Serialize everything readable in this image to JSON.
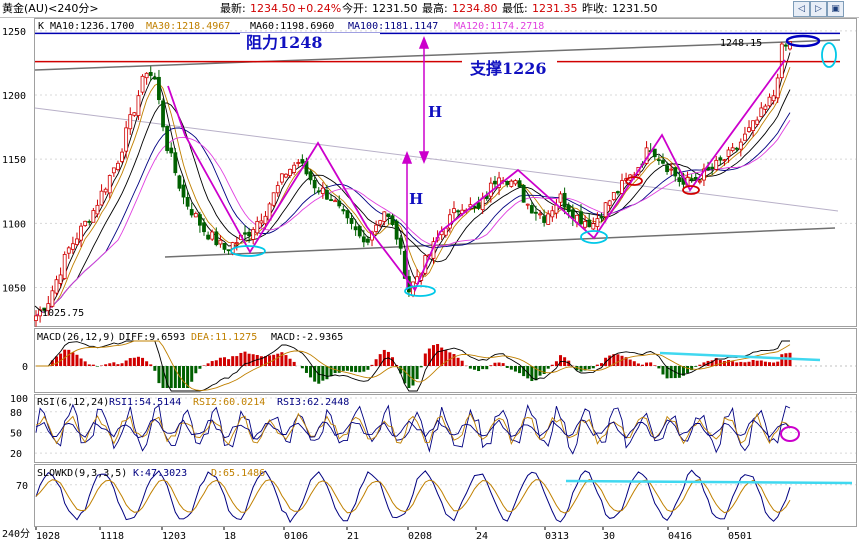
{
  "header": {
    "symbol": "黄金(AU)<240分>",
    "latest_label": "最新:",
    "latest": "1234.50",
    "change": "+0.24%",
    "open_label": "今开:",
    "open": "1231.50",
    "high_label": "最高:",
    "high": "1234.80",
    "low_label": "最低:",
    "low": "1231.35",
    "prev_label": "昨收:",
    "prev": "1231.50",
    "btn_prev": "◁",
    "btn_next": "▷",
    "btn_zoom": "▣"
  },
  "ma_legend": [
    {
      "text": "K",
      "color": "#000000"
    },
    {
      "text": "MA10:1236.1700",
      "color": "#000000"
    },
    {
      "text": "MA30:1218.4967",
      "color": "#c08000"
    },
    {
      "text": "MA60:1198.6960",
      "color": "#000000"
    },
    {
      "text": "MA100:1181.1147",
      "color": "#000080"
    },
    {
      "text": "MA120:1174.2718",
      "color": "#e040e0"
    }
  ],
  "annotations": {
    "resistance": "阻力1248",
    "support": "支撑1226",
    "h_label": "H",
    "low_price": "1025.75",
    "high_price": "1248.15"
  },
  "macd_legend": [
    {
      "text": "MACD(26,12,9)",
      "color": "#000000"
    },
    {
      "text": "DIFF:9.6593",
      "color": "#000000"
    },
    {
      "text": "DEA:11.1275",
      "color": "#c08000"
    },
    {
      "text": "MACD:-2.9365",
      "color": "#000000"
    }
  ],
  "rsi_legend": [
    {
      "text": "RSI(6,12,24)",
      "color": "#000000"
    },
    {
      "text": "RSI1:54.5144",
      "color": "#000080"
    },
    {
      "text": "RSI2:60.0214",
      "color": "#c08000"
    },
    {
      "text": "RSI3:62.2448",
      "color": "#000080"
    }
  ],
  "kd_legend": [
    {
      "text": "SLOWKD(9,3,3,5)",
      "color": "#000000"
    },
    {
      "text": "K:47.3023",
      "color": "#000080"
    },
    {
      "text": "D:65.1486",
      "color": "#c08000"
    }
  ],
  "colors": {
    "up": "#d00000",
    "down": "#006000",
    "ma10": "#000000",
    "ma30": "#c08000",
    "ma60": "#000000",
    "ma100": "#000080",
    "ma120": "#e040e0",
    "resistance": "#0000b0",
    "support": "#d00000",
    "pattern": "#cc00cc",
    "highlight": "#00c8e8"
  },
  "chart_data": [
    {
      "type": "candlestick",
      "name": "黄金(AU) 240分 K线",
      "ylim": [
        1020,
        1260
      ],
      "y_ticks": [
        1050,
        1100,
        1150,
        1200,
        1250
      ],
      "x_ticks": [
        "1028",
        "1118",
        "1203",
        "18",
        "0106",
        "21",
        "0208",
        "24",
        "0313",
        "30",
        "0416",
        "0501"
      ],
      "x_tick_label_corner": "240分",
      "close_path": [
        [
          0,
          1028
        ],
        [
          3,
          1040
        ],
        [
          8,
          1080
        ],
        [
          14,
          1110
        ],
        [
          20,
          1150
        ],
        [
          24,
          1190
        ],
        [
          27,
          1220
        ],
        [
          29,
          1212
        ],
        [
          32,
          1160
        ],
        [
          36,
          1120
        ],
        [
          41,
          1095
        ],
        [
          46,
          1080
        ],
        [
          51,
          1090
        ],
        [
          56,
          1110
        ],
        [
          61,
          1140
        ],
        [
          64,
          1148
        ],
        [
          68,
          1130
        ],
        [
          72,
          1120
        ],
        [
          76,
          1100
        ],
        [
          80,
          1085
        ],
        [
          85,
          1110
        ],
        [
          88,
          1090
        ],
        [
          91,
          1048
        ],
        [
          95,
          1070
        ],
        [
          100,
          1100
        ],
        [
          104,
          1115
        ],
        [
          108,
          1110
        ],
        [
          113,
          1140
        ],
        [
          117,
          1130
        ],
        [
          120,
          1115
        ],
        [
          124,
          1105
        ],
        [
          128,
          1120
        ],
        [
          132,
          1105
        ],
        [
          136,
          1100
        ],
        [
          140,
          1118
        ],
        [
          146,
          1140
        ],
        [
          150,
          1160
        ],
        [
          154,
          1145
        ],
        [
          158,
          1130
        ],
        [
          164,
          1140
        ],
        [
          170,
          1155
        ],
        [
          176,
          1180
        ],
        [
          180,
          1200
        ],
        [
          182,
          1235
        ],
        [
          184,
          1240
        ]
      ],
      "lines": [
        {
          "name": "阻力1248",
          "y": 1248
        },
        {
          "name": "支撑1226",
          "y": 1226
        }
      ]
    },
    {
      "type": "line",
      "name": "MACD(26,12,9)",
      "y_ticks": [
        0
      ],
      "series": [
        {
          "name": "DIFF",
          "last": 9.6593
        },
        {
          "name": "DEA",
          "last": 11.1275
        },
        {
          "name": "MACD",
          "last": -2.9365
        }
      ]
    },
    {
      "type": "line",
      "name": "RSI(6,12,24)",
      "ylim": [
        10,
        100
      ],
      "y_ticks": [
        20,
        50,
        80,
        100
      ],
      "series": [
        {
          "name": "RSI1",
          "last": 54.5144
        },
        {
          "name": "RSI2",
          "last": 60.0214
        },
        {
          "name": "RSI3",
          "last": 62.2448
        }
      ]
    },
    {
      "type": "line",
      "name": "SLOWKD(9,3,3,5)",
      "y_ticks": [
        70
      ],
      "series": [
        {
          "name": "K",
          "last": 47.3023
        },
        {
          "name": "D",
          "last": 65.1486
        }
      ]
    }
  ]
}
